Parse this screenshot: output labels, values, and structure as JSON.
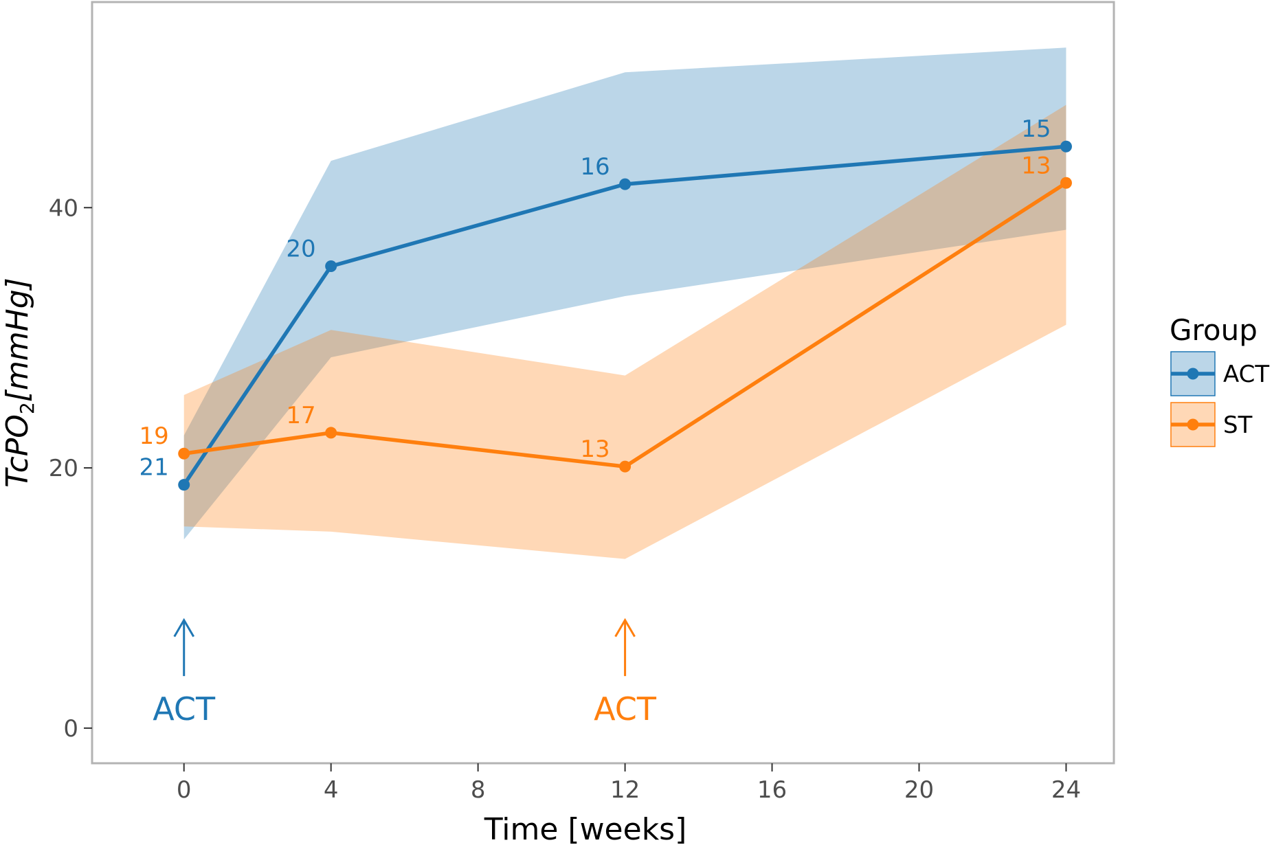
{
  "chart_data": {
    "type": "line",
    "xlabel": "Time [weeks]",
    "ylabel_main": "TcPO",
    "ylabel_sub": "2",
    "ylabel_unit": "[mmHg]",
    "xlim": [
      -2.5,
      25.3
    ],
    "ylim": [
      -2.7,
      55.8
    ],
    "xticks": [
      0,
      4,
      8,
      12,
      16,
      20,
      24
    ],
    "yticks": [
      0,
      20,
      40
    ],
    "legend": {
      "title": "Group",
      "position": "right"
    },
    "series": [
      {
        "name": "ACT",
        "color": "#1f77b4",
        "x": [
          0,
          4,
          12,
          24
        ],
        "y": [
          18.7,
          35.5,
          41.8,
          44.7
        ],
        "ci_lower": [
          14.5,
          28.5,
          33.2,
          38.3
        ],
        "ci_upper": [
          22.5,
          43.6,
          50.4,
          52.3
        ],
        "n_labels": [
          "21",
          "20",
          "16",
          "15"
        ]
      },
      {
        "name": "ST",
        "color": "#ff7f0e",
        "x": [
          0,
          4,
          12,
          24
        ],
        "y": [
          21.1,
          22.7,
          20.1,
          41.9
        ],
        "ci_lower": [
          15.5,
          15.1,
          13.0,
          31.0
        ],
        "ci_upper": [
          25.6,
          30.6,
          27.1,
          47.9
        ],
        "n_labels": [
          "19",
          "17",
          "13",
          "13"
        ]
      }
    ],
    "annotations": [
      {
        "text": "ACT",
        "x": 0,
        "y_tip": 8.3,
        "y_tail": 4.0,
        "color": "#1f77b4"
      },
      {
        "text": "ACT",
        "x": 12,
        "y_tip": 8.3,
        "y_tail": 4.0,
        "color": "#ff7f0e"
      }
    ]
  }
}
